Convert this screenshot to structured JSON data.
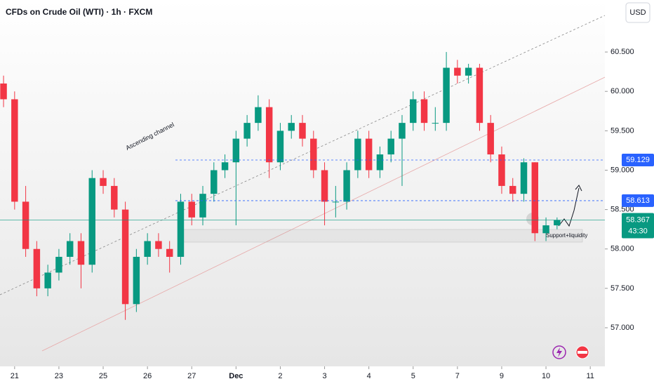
{
  "chart_data": {
    "type": "candlestick",
    "title": "CFDs on Crude Oil (WTI) · 1h · FXCM",
    "currency": "USD",
    "up_color": "#089981",
    "down_color": "#f23645",
    "level_color": "#2962ff",
    "x": [
      -0.25,
      0,
      0.25,
      0.5,
      0.75,
      1,
      1.25,
      1.5,
      1.75,
      2,
      2.25,
      2.5,
      2.75,
      3,
      3.25,
      3.5,
      3.75,
      4,
      4.25,
      4.5,
      4.75,
      5,
      5.25,
      5.5,
      5.75,
      6,
      6.25,
      6.5,
      6.75,
      7,
      7.25,
      7.5,
      7.75,
      8,
      8.25,
      8.5,
      8.75,
      9,
      9.25,
      9.5,
      9.75,
      10,
      10.25,
      10.5,
      10.75,
      11,
      11.25,
      11.5,
      11.75,
      12,
      12.25
    ],
    "open": [
      60.1,
      59.9,
      58.6,
      58.0,
      57.5,
      57.7,
      57.9,
      58.1,
      57.8,
      58.9,
      58.8,
      58.5,
      57.3,
      57.9,
      58.1,
      58.0,
      57.9,
      58.6,
      58.4,
      58.7,
      59.0,
      59.1,
      59.4,
      59.6,
      59.8,
      59.1,
      59.5,
      59.6,
      59.4,
      59.0,
      58.6,
      58.6,
      59.0,
      59.4,
      59.0,
      59.2,
      59.4,
      59.6,
      59.9,
      59.6,
      59.6,
      60.3,
      60.2,
      60.3,
      59.6,
      59.2,
      58.8,
      58.7,
      59.1,
      58.2,
      58.3
    ],
    "high": [
      60.2,
      60.0,
      58.8,
      58.1,
      57.8,
      58.0,
      58.2,
      58.2,
      59.0,
      59.0,
      58.9,
      58.6,
      58.0,
      58.2,
      58.2,
      58.1,
      58.7,
      58.7,
      58.8,
      59.1,
      59.2,
      59.5,
      59.7,
      59.95,
      59.9,
      59.6,
      59.7,
      59.7,
      59.5,
      59.1,
      58.8,
      59.1,
      59.5,
      59.5,
      59.3,
      59.5,
      59.7,
      60.0,
      60.0,
      59.8,
      60.5,
      60.4,
      60.35,
      60.35,
      59.7,
      59.3,
      58.9,
      59.15,
      59.1,
      58.4,
      58.4
    ],
    "low": [
      59.8,
      58.5,
      57.9,
      57.4,
      57.4,
      57.6,
      57.8,
      57.5,
      57.7,
      58.7,
      58.4,
      57.1,
      57.2,
      57.8,
      57.9,
      57.7,
      57.8,
      58.3,
      58.3,
      58.6,
      58.9,
      58.3,
      59.3,
      59.5,
      58.9,
      59.0,
      59.4,
      59.3,
      58.9,
      58.3,
      58.4,
      58.5,
      58.9,
      58.9,
      58.9,
      59.1,
      58.8,
      59.5,
      59.5,
      59.5,
      59.5,
      60.1,
      60.1,
      59.5,
      59.1,
      58.7,
      58.6,
      58.6,
      58.1,
      58.1,
      58.25
    ],
    "close": [
      59.9,
      58.6,
      58.0,
      57.5,
      57.7,
      57.9,
      58.1,
      57.8,
      58.9,
      58.8,
      58.5,
      57.3,
      57.9,
      58.1,
      58.0,
      57.9,
      58.6,
      58.4,
      58.7,
      59.0,
      59.1,
      59.4,
      59.6,
      59.8,
      59.1,
      59.5,
      59.6,
      59.4,
      59.0,
      58.6,
      58.6,
      59.0,
      59.4,
      59.0,
      59.2,
      59.4,
      59.6,
      59.9,
      59.6,
      59.6,
      60.3,
      60.2,
      60.3,
      59.6,
      59.2,
      58.8,
      58.7,
      59.1,
      58.2,
      58.3,
      58.367
    ],
    "xlim": [
      -0.33,
      13.33
    ],
    "xticks": [
      {
        "value": 0,
        "label": "21"
      },
      {
        "value": 1,
        "label": "23"
      },
      {
        "value": 2,
        "label": "25"
      },
      {
        "value": 3,
        "label": "26"
      },
      {
        "value": 4,
        "label": "27"
      },
      {
        "value": 5,
        "label": "Dec"
      },
      {
        "value": 6,
        "label": "2"
      },
      {
        "value": 7,
        "label": "3"
      },
      {
        "value": 8,
        "label": "4"
      },
      {
        "value": 9,
        "label": "5"
      },
      {
        "value": 10,
        "label": "7"
      },
      {
        "value": 11,
        "label": "9"
      },
      {
        "value": 12,
        "label": "10"
      },
      {
        "value": 13,
        "label": "11"
      }
    ],
    "ylim": [
      56.51,
      61.16
    ],
    "yticks": [
      {
        "value": 57,
        "label": "57.000"
      },
      {
        "value": 57.5,
        "label": "57.500"
      },
      {
        "value": 58,
        "label": "58.000"
      },
      {
        "value": 58.5,
        "label": "58.500"
      },
      {
        "value": 59,
        "label": "59.000"
      },
      {
        "value": 59.5,
        "label": "59.500"
      },
      {
        "value": 60,
        "label": "60.000"
      },
      {
        "value": 60.5,
        "label": "60.500"
      }
    ],
    "levels": [
      59.129,
      58.613
    ],
    "current_price": 58.367,
    "countdown": "43:30",
    "annotations": [
      "Ascending channel",
      "Support+liquidity"
    ]
  }
}
